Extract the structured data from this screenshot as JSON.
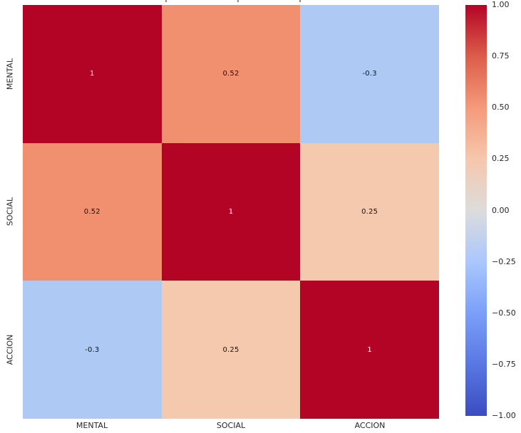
{
  "chart_data": {
    "type": "heatmap",
    "categories": [
      "MENTAL",
      "SOCIAL",
      "ACCION"
    ],
    "x_tick_labels": [
      "MENTAL",
      "SOCIAL",
      "ACCION"
    ],
    "y_tick_labels": [
      "MENTAL",
      "SOCIAL",
      "ACCION"
    ],
    "matrix": [
      [
        1,
        0.52,
        -0.3
      ],
      [
        0.52,
        1,
        0.25
      ],
      [
        -0.3,
        0.25,
        1
      ]
    ],
    "cell_labels": [
      [
        "1",
        "0.52",
        "-0.3"
      ],
      [
        "0.52",
        "1",
        "0.25"
      ],
      [
        "-0.3",
        "0.25",
        "1"
      ]
    ],
    "cell_colors": [
      [
        "#b40426",
        "#f1906f",
        "#aec9f4"
      ],
      [
        "#f1906f",
        "#b40426",
        "#f4c9ae"
      ],
      [
        "#aec9f4",
        "#f4c9ae",
        "#b40426"
      ]
    ],
    "cell_text_colors": [
      [
        "#ffffff",
        "#141414",
        "#141414"
      ],
      [
        "#141414",
        "#ffffff",
        "#141414"
      ],
      [
        "#141414",
        "#141414",
        "#ffffff"
      ]
    ],
    "colormap": "coolwarm",
    "vmin": -1,
    "vmax": 1,
    "legend_position": "right-colorbar",
    "grid": false,
    "colorbar_ticks": [
      "1.00",
      "0.75",
      "0.50",
      "0.25",
      "0.00",
      "−0.25",
      "−0.50",
      "−0.75",
      "−1.00"
    ],
    "colorbar_gradient_stops": [
      "#b40426",
      "#dc5d4a",
      "#f49a7b",
      "#f6c7ad",
      "#dddcdc",
      "#aac7fd",
      "#7b9ff9",
      "#5977e3",
      "#3b4cc0"
    ]
  },
  "colors": {
    "background": "#ffffff",
    "tick_label": "#262626",
    "strong_positive": "#b40426",
    "strong_negative": "#3b4cc0"
  }
}
